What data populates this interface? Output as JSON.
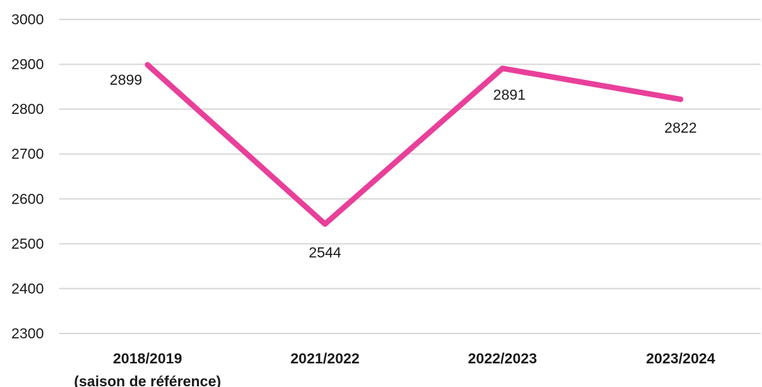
{
  "chart_data": {
    "type": "line",
    "title": "",
    "xlabel": "",
    "ylabel": "",
    "categories": [
      [
        "2018/2019",
        "(saison de référence)"
      ],
      [
        "2021/2022"
      ],
      [
        "2022/2023"
      ],
      [
        "2023/2024"
      ]
    ],
    "series": [
      {
        "values": [
          2899,
          2544,
          2891,
          2822
        ],
        "data_labels": [
          "2899",
          "2544",
          "2891",
          "2822"
        ],
        "color": "#e8409a"
      }
    ],
    "ylim": [
      2300,
      3000
    ],
    "y_ticks": [
      3000,
      2900,
      2800,
      2700,
      2600,
      2500,
      2400,
      2300
    ],
    "grid": true,
    "legend": "none"
  }
}
